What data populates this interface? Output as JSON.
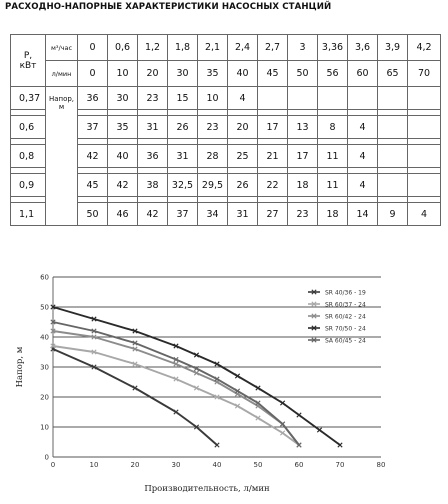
{
  "title": "РАСХОДНО-НАПОРНЫЕ ХАРАКТЕРИСТИКИ НАСОСНЫХ СТАНЦИЙ",
  "table": {
    "p_label": "Р,",
    "p_unit": "кВт",
    "flow_m3_unit": "м³/час",
    "flow_lpm_unit": "л/мин",
    "head_label": "Напор,",
    "head_unit": "м",
    "flow_m3": [
      "0",
      "0,6",
      "1,2",
      "1,8",
      "2,1",
      "2,4",
      "2,7",
      "3",
      "3,36",
      "3,6",
      "3,9",
      "4,2"
    ],
    "flow_lpm": [
      "0",
      "10",
      "20",
      "30",
      "35",
      "40",
      "45",
      "50",
      "56",
      "60",
      "65",
      "70"
    ],
    "rows": [
      {
        "power": "0,37",
        "heads": [
          "36",
          "30",
          "23",
          "15",
          "10",
          "4",
          "",
          "",
          "",
          "",
          "",
          ""
        ]
      },
      {
        "power": "0,6",
        "heads": [
          "37",
          "35",
          "31",
          "26",
          "23",
          "20",
          "17",
          "13",
          "8",
          "4",
          "",
          ""
        ]
      },
      {
        "power": "0,8",
        "heads": [
          "42",
          "40",
          "36",
          "31",
          "28",
          "25",
          "21",
          "17",
          "11",
          "4",
          "",
          ""
        ]
      },
      {
        "power": "0,9",
        "heads": [
          "45",
          "42",
          "38",
          "32,5",
          "29,5",
          "26",
          "22",
          "18",
          "11",
          "4",
          "",
          ""
        ]
      },
      {
        "power": "1,1",
        "heads": [
          "50",
          "46",
          "42",
          "37",
          "34",
          "31",
          "27",
          "23",
          "18",
          "14",
          "9",
          "4"
        ]
      }
    ]
  },
  "chart_data": {
    "type": "line",
    "xlabel": "Производительность, л/мин",
    "ylabel": "Напор, м",
    "xlim": [
      0,
      80
    ],
    "ylim": [
      0,
      60
    ],
    "xticks": [
      0,
      10,
      20,
      30,
      40,
      50,
      60,
      70,
      80
    ],
    "yticks": [
      0,
      10,
      20,
      30,
      40,
      50,
      60
    ],
    "grid": true,
    "legend_position": "right",
    "series": [
      {
        "name": "SR 40/36 - 19",
        "color": "#3a3a3a",
        "marker": "x",
        "x": [
          0,
          10,
          20,
          30,
          35,
          40
        ],
        "y": [
          36,
          30,
          23,
          15,
          10,
          4
        ]
      },
      {
        "name": "SR 60/37 - 24",
        "color": "#a8a8a8",
        "marker": "x",
        "x": [
          0,
          10,
          20,
          30,
          35,
          40,
          45,
          50,
          56,
          60
        ],
        "y": [
          37,
          35,
          31,
          26,
          23,
          20,
          17,
          13,
          8,
          4
        ]
      },
      {
        "name": "SR 60/42 - 24",
        "color": "#8c8c8c",
        "marker": "x",
        "x": [
          0,
          10,
          20,
          30,
          35,
          40,
          45,
          50,
          56,
          60
        ],
        "y": [
          42,
          40,
          36,
          31,
          28,
          25,
          21,
          17,
          11,
          4
        ]
      },
      {
        "name": "SR 70/50 - 24",
        "color": "#2a2a2a",
        "marker": "x",
        "x": [
          0,
          10,
          20,
          30,
          35,
          40,
          45,
          50,
          56,
          60,
          65,
          70
        ],
        "y": [
          50,
          46,
          42,
          37,
          34,
          31,
          27,
          23,
          18,
          14,
          9,
          4
        ]
      },
      {
        "name": "SA 60/45 - 24",
        "color": "#666666",
        "marker": "x",
        "x": [
          0,
          10,
          20,
          30,
          35,
          40,
          45,
          50,
          56,
          60
        ],
        "y": [
          45,
          42,
          38,
          32.5,
          29.5,
          26,
          22,
          18,
          11,
          4
        ]
      }
    ]
  }
}
